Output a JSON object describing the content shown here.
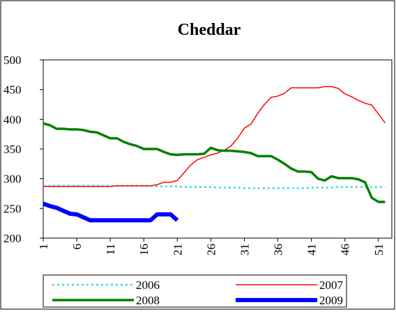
{
  "chart_data": {
    "type": "line",
    "title": "Cheddar",
    "x": [
      1,
      2,
      3,
      4,
      5,
      6,
      7,
      8,
      9,
      10,
      11,
      12,
      13,
      14,
      15,
      16,
      17,
      18,
      19,
      20,
      21,
      22,
      23,
      24,
      25,
      26,
      27,
      28,
      29,
      30,
      31,
      32,
      33,
      34,
      35,
      36,
      37,
      38,
      39,
      40,
      41,
      42,
      43,
      44,
      45,
      46,
      47,
      48,
      49,
      50,
      51,
      52
    ],
    "xlim": [
      1,
      53
    ],
    "xticks": [
      1,
      6,
      11,
      16,
      21,
      26,
      31,
      36,
      41,
      46,
      51
    ],
    "ylim": [
      200,
      500
    ],
    "yticks": [
      200,
      250,
      300,
      350,
      400,
      450,
      500
    ],
    "series": [
      {
        "name": "2006",
        "color": "#33dddd",
        "values": [
          288,
          288,
          288,
          288,
          288,
          288,
          288,
          288,
          288,
          288,
          288,
          288,
          288,
          288,
          288,
          288,
          288,
          287,
          287,
          287,
          287,
          286,
          286,
          286,
          286,
          286,
          285,
          285,
          285,
          285,
          284,
          284,
          284,
          284,
          284,
          284,
          284,
          284,
          284,
          284,
          285,
          285,
          285,
          285,
          286,
          286,
          286,
          286,
          286,
          286,
          286,
          286
        ]
      },
      {
        "name": "2007",
        "color": "#ff0000",
        "values": [
          287,
          287,
          287,
          287,
          287,
          287,
          287,
          287,
          287,
          287,
          287,
          288,
          288,
          288,
          288,
          288,
          288,
          290,
          294,
          294,
          297,
          310,
          323,
          332,
          336,
          340,
          343,
          348,
          355,
          368,
          385,
          392,
          410,
          425,
          437,
          439,
          444,
          453,
          453,
          453,
          453,
          453,
          455,
          455,
          452,
          443,
          438,
          432,
          427,
          424,
          409,
          394
        ]
      },
      {
        "name": "2008",
        "color": "#008000",
        "values": [
          393,
          390,
          384,
          384,
          383,
          383,
          382,
          379,
          378,
          373,
          368,
          368,
          362,
          358,
          355,
          350,
          350,
          350,
          345,
          341,
          340,
          341,
          341,
          341,
          342,
          352,
          348,
          347,
          347,
          346,
          345,
          343,
          338,
          338,
          338,
          332,
          325,
          317,
          312,
          312,
          311,
          300,
          297,
          304,
          301,
          301,
          301,
          299,
          294,
          268,
          261,
          261
        ]
      },
      {
        "name": "2009",
        "color": "#0000ff",
        "values": [
          258,
          254,
          251,
          246,
          241,
          240,
          235,
          230,
          230,
          230,
          230,
          230,
          230,
          230,
          230,
          230,
          230,
          240,
          240,
          240,
          230,
          null,
          null,
          null,
          null,
          null,
          null,
          null,
          null,
          null,
          null,
          null,
          null,
          null,
          null,
          null,
          null,
          null,
          null,
          null,
          null,
          null,
          null,
          null,
          null,
          null,
          null,
          null,
          null,
          null,
          null,
          null
        ]
      }
    ]
  }
}
